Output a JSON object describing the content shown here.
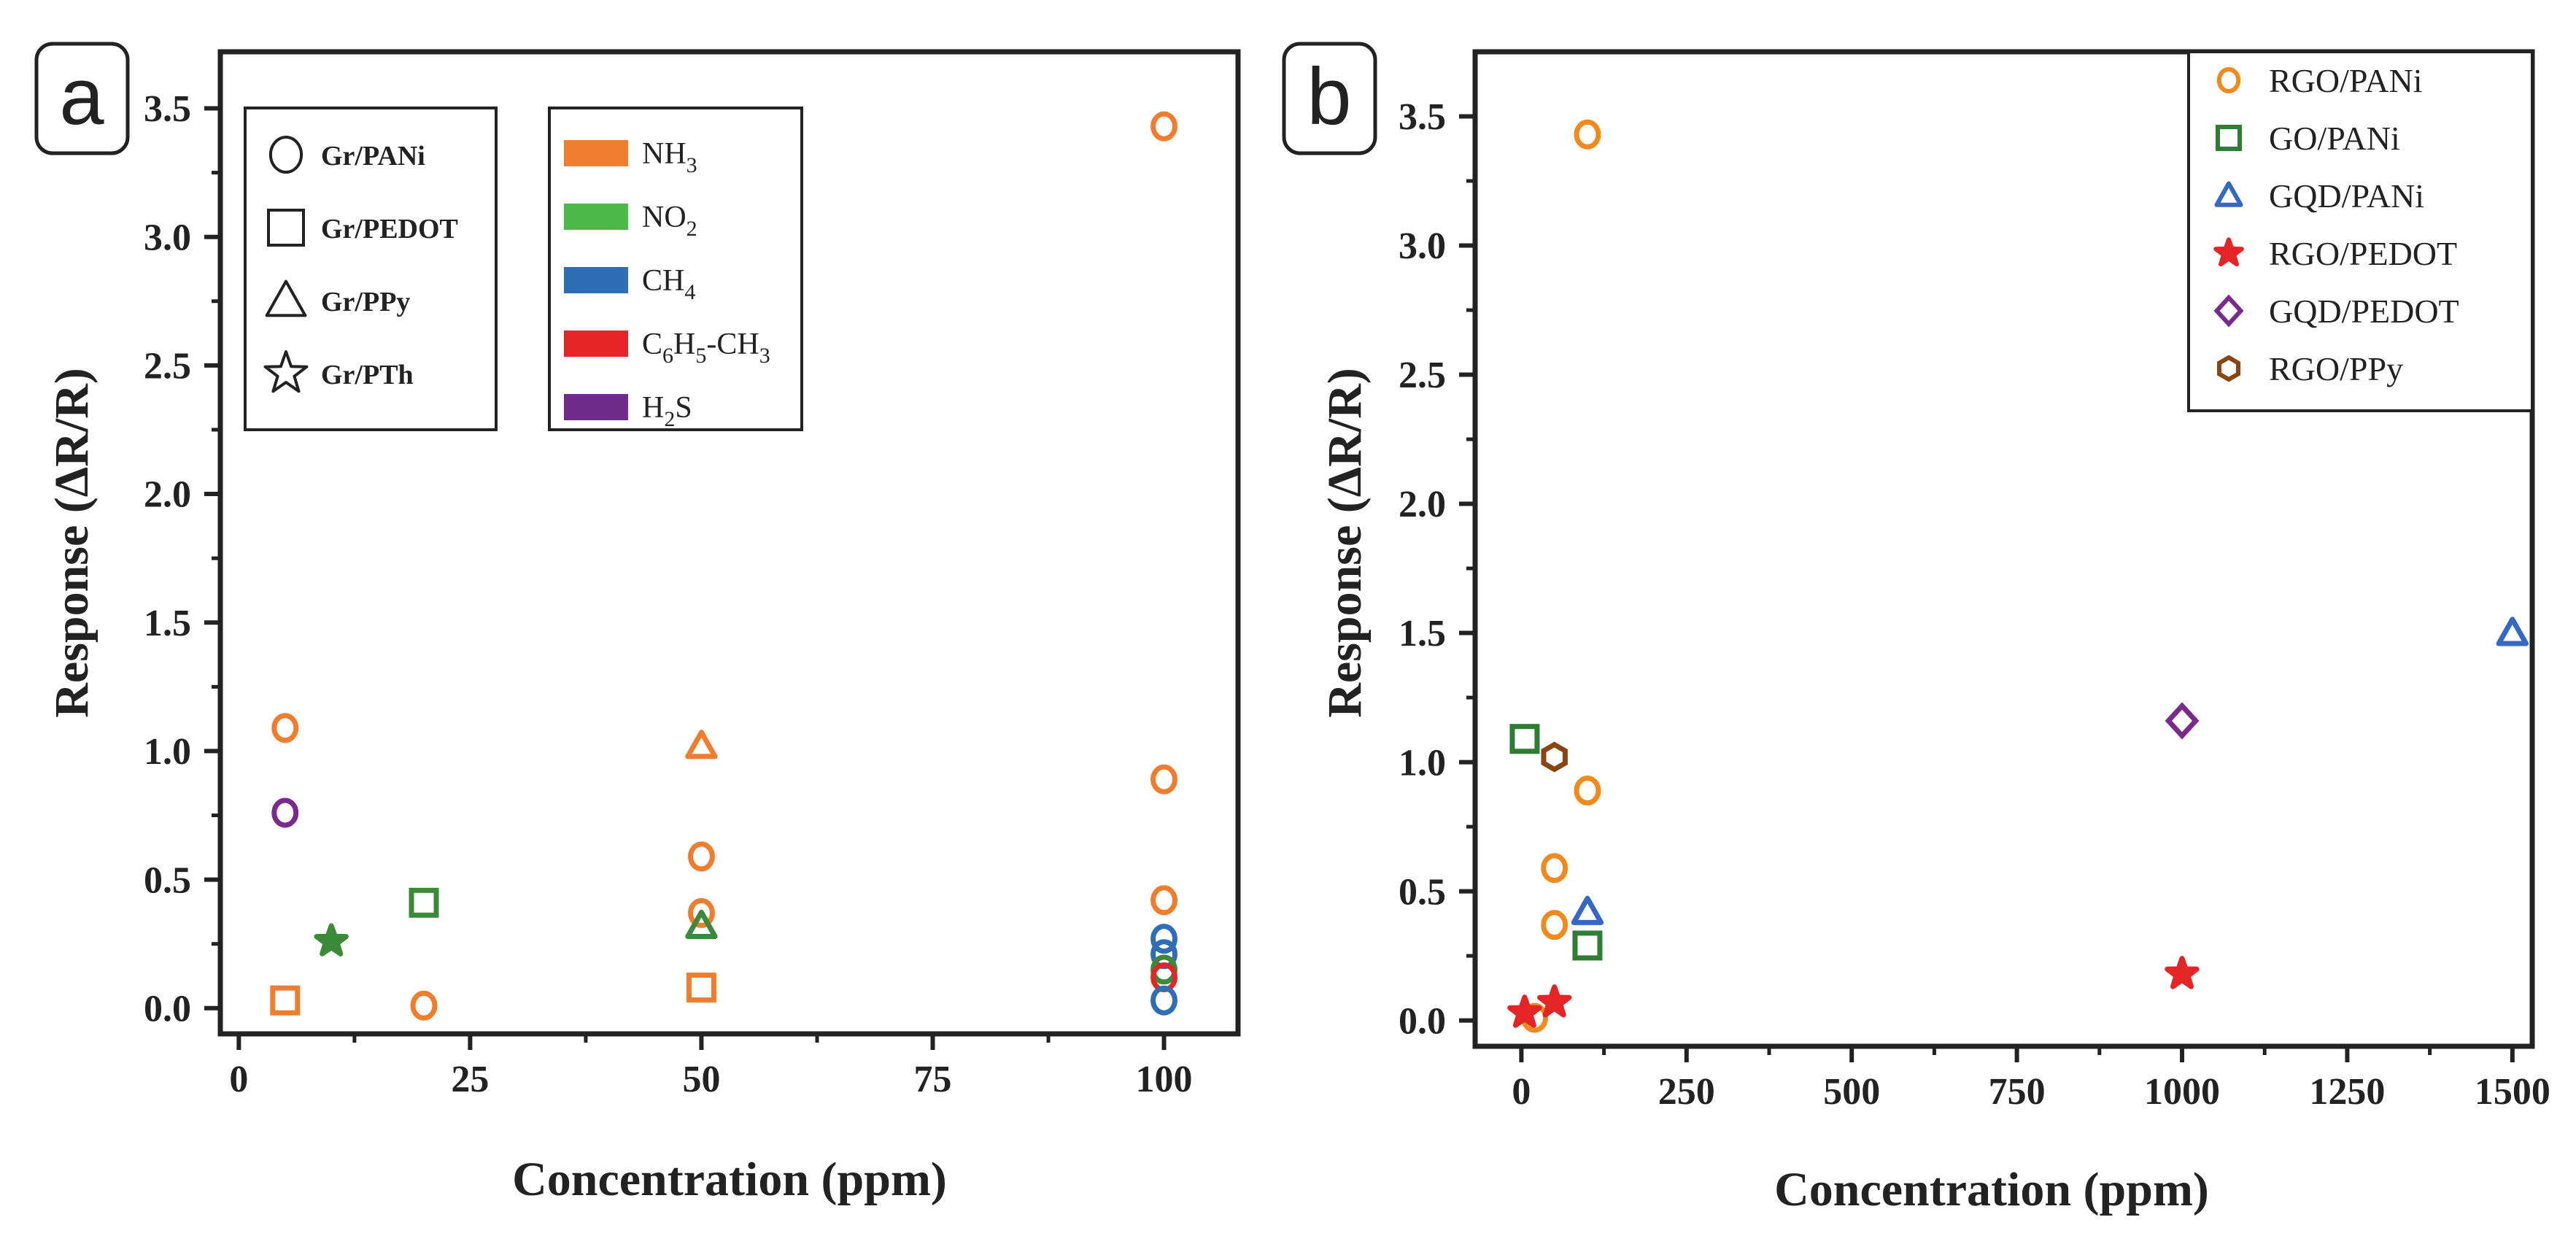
{
  "panels": {
    "a": {
      "label": "a"
    },
    "b": {
      "label": "b"
    }
  },
  "chart_data": [
    {
      "id": "a",
      "type": "scatter",
      "title": "",
      "xlabel": "Concentration (ppm)",
      "ylabel": "Response (ΔR/R)",
      "xlim": [
        -2,
        108
      ],
      "ylim": [
        -0.1,
        3.72
      ],
      "xticks": [
        0,
        25,
        50,
        75,
        100
      ],
      "xtick_labels": [
        "0",
        "25",
        "50",
        "75",
        "100"
      ],
      "yticks": [
        0.0,
        0.5,
        1.0,
        1.5,
        2.0,
        2.5,
        3.0,
        3.5
      ],
      "ytick_labels": [
        "0.0",
        "0.5",
        "1.0",
        "1.5",
        "2.0",
        "2.5",
        "3.0",
        "3.5"
      ],
      "marker_legend": [
        {
          "shape": "circle",
          "label": "Gr/PANi"
        },
        {
          "shape": "square",
          "label": "Gr/PEDOT"
        },
        {
          "shape": "triangle",
          "label": "Gr/PPy"
        },
        {
          "shape": "star",
          "label": "Gr/PTh"
        }
      ],
      "color_legend": [
        {
          "label_parts": [
            [
              "NH",
              ""
            ],
            [
              "3",
              "sub"
            ]
          ],
          "color": "#f07d2e"
        },
        {
          "label_parts": [
            [
              "NO",
              ""
            ],
            [
              "2",
              "sub"
            ]
          ],
          "color": "#4cb84a"
        },
        {
          "label_parts": [
            [
              "CH",
              ""
            ],
            [
              "4",
              "sub"
            ]
          ],
          "color": "#2f6db5"
        },
        {
          "label_parts": [
            [
              "C",
              ""
            ],
            [
              "6",
              "sub"
            ],
            [
              "H",
              ""
            ],
            [
              "5",
              "sub"
            ],
            [
              "-CH",
              ""
            ],
            [
              "3",
              "sub"
            ]
          ],
          "color": "#e42527"
        },
        {
          "label_parts": [
            [
              "H",
              ""
            ],
            [
              "2",
              "sub"
            ],
            [
              "S",
              ""
            ]
          ],
          "color": "#6f2a8a"
        }
      ],
      "points": [
        {
          "x": 5,
          "y": 1.09,
          "shape": "circle",
          "color": "#f07d2e"
        },
        {
          "x": 5,
          "y": 0.76,
          "shape": "circle",
          "color": "#7a2a8c"
        },
        {
          "x": 5,
          "y": 0.03,
          "shape": "square",
          "color": "#f07d2e"
        },
        {
          "x": 10,
          "y": 0.26,
          "shape": "star",
          "color": "#3a8a3a"
        },
        {
          "x": 20,
          "y": 0.41,
          "shape": "square",
          "color": "#3a8a3a"
        },
        {
          "x": 20,
          "y": 0.01,
          "shape": "circle",
          "color": "#f07d2e"
        },
        {
          "x": 50,
          "y": 1.02,
          "shape": "triangle",
          "color": "#f07d2e"
        },
        {
          "x": 50,
          "y": 0.59,
          "shape": "circle",
          "color": "#f07d2e"
        },
        {
          "x": 50,
          "y": 0.37,
          "shape": "circle",
          "color": "#f07d2e"
        },
        {
          "x": 50,
          "y": 0.32,
          "shape": "triangle",
          "color": "#3a8a3a"
        },
        {
          "x": 50,
          "y": 0.08,
          "shape": "square",
          "color": "#f07d2e"
        },
        {
          "x": 100,
          "y": 3.43,
          "shape": "circle",
          "color": "#f07d2e"
        },
        {
          "x": 100,
          "y": 0.89,
          "shape": "circle",
          "color": "#f07d2e"
        },
        {
          "x": 100,
          "y": 0.42,
          "shape": "circle",
          "color": "#f07d2e"
        },
        {
          "x": 100,
          "y": 0.27,
          "shape": "circle",
          "color": "#2f6db5"
        },
        {
          "x": 100,
          "y": 0.21,
          "shape": "circle",
          "color": "#2f6db5"
        },
        {
          "x": 100,
          "y": 0.15,
          "shape": "circle",
          "color": "#3a8a3a"
        },
        {
          "x": 100,
          "y": 0.12,
          "shape": "circle",
          "color": "#e42527"
        },
        {
          "x": 100,
          "y": 0.03,
          "shape": "circle",
          "color": "#2f6db5"
        }
      ]
    },
    {
      "id": "b",
      "type": "scatter",
      "title": "",
      "xlabel": "Concentration (ppm)",
      "ylabel": "Response (ΔR/R)",
      "xlim": [
        -70,
        1530
      ],
      "ylim": [
        -0.1,
        3.75
      ],
      "xticks": [
        0,
        250,
        500,
        750,
        1000,
        1250,
        1500
      ],
      "xtick_labels": [
        "0",
        "250",
        "500",
        "750",
        "1000",
        "1250",
        "1500"
      ],
      "yticks": [
        0.0,
        0.5,
        1.0,
        1.5,
        2.0,
        2.5,
        3.0,
        3.5
      ],
      "ytick_labels": [
        "0.0",
        "0.5",
        "1.0",
        "1.5",
        "2.0",
        "2.5",
        "3.0",
        "3.5"
      ],
      "legend_position": "top-right",
      "series": [
        {
          "name": "RGO/PANi",
          "shape": "circle",
          "color": "#f08a1c",
          "x": [
            20,
            50,
            50,
            100,
            100
          ],
          "y": [
            0.01,
            0.37,
            0.59,
            0.89,
            3.43
          ]
        },
        {
          "name": "GO/PANi",
          "shape": "square",
          "color": "#2e7d32",
          "x": [
            5,
            100
          ],
          "y": [
            1.09,
            0.29
          ]
        },
        {
          "name": "GQD/PANi",
          "shape": "triangle",
          "color": "#3567c4",
          "x": [
            100,
            1500
          ],
          "y": [
            0.42,
            1.5
          ]
        },
        {
          "name": "RGO/PEDOT",
          "shape": "star",
          "color": "#e42527",
          "x": [
            5,
            50,
            1000
          ],
          "y": [
            0.03,
            0.07,
            0.18
          ]
        },
        {
          "name": "GQD/PEDOT",
          "shape": "diamond",
          "color": "#7a2a8c",
          "x": [
            1000
          ],
          "y": [
            1.16
          ]
        },
        {
          "name": "RGO/PPy",
          "shape": "hexagon",
          "color": "#8b4513",
          "x": [
            50
          ],
          "y": [
            1.02
          ]
        }
      ]
    }
  ]
}
